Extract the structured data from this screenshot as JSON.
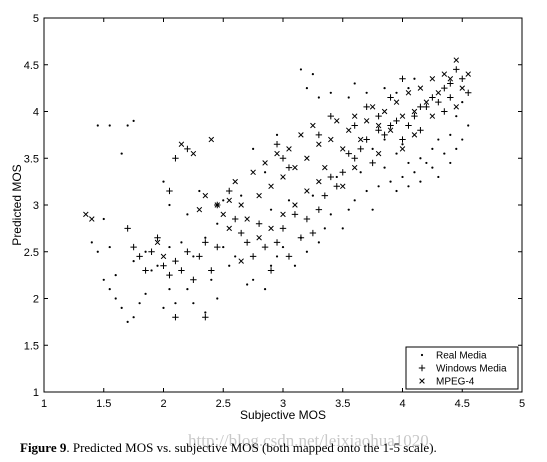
{
  "chart_data": {
    "type": "scatter",
    "title": "",
    "xlabel": "Subjective MOS",
    "ylabel": "Predicted MOS",
    "xlim": [
      1,
      5
    ],
    "ylim": [
      1,
      5
    ],
    "xticks": [
      "1",
      "1.5",
      "2",
      "2.5",
      "3",
      "3.5",
      "4",
      "4.5",
      "5"
    ],
    "yticks": [
      "1",
      "1.5",
      "2",
      "2.5",
      "3",
      "3.5",
      "4",
      "4.5",
      "5"
    ],
    "grid": false,
    "legend_position": "bottom-right",
    "series": [
      {
        "name": "Real Media",
        "marker": "dot",
        "color": "#000000",
        "points": [
          [
            1.45,
            3.85
          ],
          [
            1.55,
            3.85
          ],
          [
            1.7,
            3.85
          ],
          [
            1.75,
            3.9
          ],
          [
            1.65,
            3.55
          ],
          [
            1.4,
            2.6
          ],
          [
            1.45,
            2.5
          ],
          [
            1.5,
            2.2
          ],
          [
            1.55,
            2.1
          ],
          [
            1.6,
            2.0
          ],
          [
            1.65,
            1.9
          ],
          [
            1.7,
            1.75
          ],
          [
            1.75,
            1.8
          ],
          [
            1.8,
            1.95
          ],
          [
            1.85,
            2.05
          ],
          [
            1.9,
            2.3
          ],
          [
            2.0,
            1.9
          ],
          [
            2.05,
            2.1
          ],
          [
            2.1,
            1.95
          ],
          [
            2.2,
            2.1
          ],
          [
            2.25,
            1.95
          ],
          [
            2.35,
            1.85
          ],
          [
            2.4,
            2.2
          ],
          [
            2.45,
            2.0
          ],
          [
            2.0,
            3.25
          ],
          [
            2.05,
            3.0
          ],
          [
            2.2,
            2.9
          ],
          [
            2.3,
            3.15
          ],
          [
            2.5,
            2.55
          ],
          [
            2.55,
            2.35
          ],
          [
            2.6,
            2.45
          ],
          [
            2.7,
            2.15
          ],
          [
            2.75,
            2.2
          ],
          [
            2.85,
            2.1
          ],
          [
            2.9,
            2.35
          ],
          [
            2.95,
            2.45
          ],
          [
            3.0,
            2.55
          ],
          [
            3.1,
            2.35
          ],
          [
            3.15,
            2.65
          ],
          [
            3.2,
            2.5
          ],
          [
            3.3,
            2.6
          ],
          [
            3.35,
            2.75
          ],
          [
            3.4,
            2.9
          ],
          [
            3.5,
            2.75
          ],
          [
            3.55,
            2.95
          ],
          [
            3.6,
            3.05
          ],
          [
            3.7,
            3.15
          ],
          [
            3.75,
            2.95
          ],
          [
            3.8,
            3.2
          ],
          [
            3.9,
            3.25
          ],
          [
            3.95,
            3.15
          ],
          [
            4.0,
            3.3
          ],
          [
            4.05,
            3.2
          ],
          [
            4.1,
            3.35
          ],
          [
            4.15,
            3.25
          ],
          [
            4.2,
            3.45
          ],
          [
            4.25,
            3.4
          ],
          [
            4.3,
            3.3
          ],
          [
            4.35,
            3.55
          ],
          [
            4.4,
            3.45
          ],
          [
            4.45,
            3.6
          ],
          [
            4.5,
            3.7
          ],
          [
            4.55,
            3.85
          ],
          [
            4.5,
            4.1
          ],
          [
            4.45,
            3.95
          ],
          [
            4.4,
            3.75
          ],
          [
            4.3,
            3.7
          ],
          [
            4.25,
            3.6
          ],
          [
            4.15,
            3.5
          ],
          [
            4.05,
            3.45
          ],
          [
            3.95,
            3.55
          ],
          [
            3.85,
            3.4
          ],
          [
            3.2,
            4.25
          ],
          [
            3.3,
            4.15
          ],
          [
            3.4,
            4.2
          ],
          [
            3.55,
            4.15
          ],
          [
            3.6,
            4.3
          ],
          [
            3.7,
            4.2
          ],
          [
            3.85,
            4.25
          ],
          [
            3.95,
            4.2
          ],
          [
            4.05,
            4.25
          ],
          [
            4.1,
            4.35
          ],
          [
            3.25,
            4.4
          ],
          [
            3.15,
            4.45
          ],
          [
            2.95,
            3.75
          ],
          [
            2.85,
            3.35
          ],
          [
            2.75,
            3.6
          ],
          [
            2.65,
            3.1
          ],
          [
            2.5,
            3.05
          ],
          [
            2.45,
            2.8
          ],
          [
            2.35,
            2.65
          ],
          [
            2.25,
            2.45
          ],
          [
            2.15,
            2.6
          ],
          [
            2.05,
            2.55
          ],
          [
            1.95,
            2.35
          ],
          [
            1.85,
            2.5
          ],
          [
            1.75,
            2.4
          ],
          [
            1.6,
            2.25
          ],
          [
            1.5,
            2.85
          ],
          [
            1.55,
            2.55
          ],
          [
            2.9,
            2.95
          ],
          [
            3.05,
            3.05
          ],
          [
            3.25,
            3.1
          ],
          [
            3.45,
            3.3
          ],
          [
            3.65,
            3.35
          ],
          [
            3.75,
            3.6
          ],
          [
            3.85,
            3.7
          ],
          [
            4.0,
            3.65
          ]
        ]
      },
      {
        "name": "Windows Media",
        "marker": "plus",
        "color": "#000000",
        "points": [
          [
            1.7,
            2.75
          ],
          [
            1.75,
            2.55
          ],
          [
            1.8,
            2.45
          ],
          [
            1.85,
            2.3
          ],
          [
            1.9,
            2.5
          ],
          [
            1.95,
            2.65
          ],
          [
            2.0,
            2.35
          ],
          [
            2.05,
            2.25
          ],
          [
            2.1,
            2.4
          ],
          [
            2.15,
            2.3
          ],
          [
            2.2,
            2.5
          ],
          [
            2.25,
            2.2
          ],
          [
            2.3,
            2.45
          ],
          [
            2.35,
            2.6
          ],
          [
            2.4,
            2.3
          ],
          [
            2.45,
            2.55
          ],
          [
            2.1,
            1.8
          ],
          [
            2.35,
            1.8
          ],
          [
            2.6,
            2.85
          ],
          [
            2.65,
            2.7
          ],
          [
            2.7,
            2.6
          ],
          [
            2.75,
            2.45
          ],
          [
            2.8,
            2.8
          ],
          [
            2.85,
            2.55
          ],
          [
            2.9,
            2.3
          ],
          [
            2.95,
            2.6
          ],
          [
            3.0,
            2.75
          ],
          [
            3.05,
            2.45
          ],
          [
            3.1,
            2.9
          ],
          [
            3.15,
            2.65
          ],
          [
            3.2,
            2.85
          ],
          [
            3.25,
            2.7
          ],
          [
            3.3,
            2.95
          ],
          [
            3.35,
            3.1
          ],
          [
            3.4,
            3.3
          ],
          [
            3.45,
            3.2
          ],
          [
            3.5,
            3.35
          ],
          [
            3.55,
            3.55
          ],
          [
            3.6,
            3.5
          ],
          [
            3.65,
            3.6
          ],
          [
            3.7,
            3.7
          ],
          [
            3.75,
            3.45
          ],
          [
            3.8,
            3.8
          ],
          [
            3.85,
            3.75
          ],
          [
            3.9,
            3.85
          ],
          [
            3.95,
            3.9
          ],
          [
            4.0,
            3.7
          ],
          [
            4.05,
            3.85
          ],
          [
            4.1,
            3.95
          ],
          [
            4.15,
            3.8
          ],
          [
            4.2,
            4.05
          ],
          [
            4.25,
            4.15
          ],
          [
            4.3,
            4.1
          ],
          [
            4.35,
            4.25
          ],
          [
            4.4,
            4.3
          ],
          [
            4.45,
            4.45
          ],
          [
            4.5,
            4.35
          ],
          [
            4.55,
            4.2
          ],
          [
            4.0,
            4.35
          ],
          [
            3.0,
            3.5
          ],
          [
            2.95,
            3.65
          ],
          [
            3.05,
            3.4
          ],
          [
            2.55,
            3.15
          ],
          [
            2.45,
            3.0
          ],
          [
            2.2,
            3.6
          ],
          [
            2.1,
            3.5
          ],
          [
            2.05,
            3.15
          ],
          [
            3.3,
            3.75
          ],
          [
            3.4,
            3.95
          ],
          [
            3.6,
            3.85
          ],
          [
            3.7,
            4.05
          ],
          [
            3.8,
            3.95
          ],
          [
            3.9,
            4.15
          ],
          [
            4.15,
            4.05
          ],
          [
            4.35,
            4.0
          ],
          [
            4.4,
            4.15
          ]
        ]
      },
      {
        "name": "MPEG-4",
        "marker": "cross",
        "color": "#000000",
        "points": [
          [
            1.35,
            2.9
          ],
          [
            1.4,
            2.85
          ],
          [
            1.95,
            2.6
          ],
          [
            2.0,
            2.45
          ],
          [
            2.3,
            2.95
          ],
          [
            2.35,
            3.1
          ],
          [
            2.45,
            3.0
          ],
          [
            2.5,
            2.9
          ],
          [
            2.55,
            3.05
          ],
          [
            2.6,
            3.25
          ],
          [
            2.65,
            3.0
          ],
          [
            2.7,
            2.85
          ],
          [
            2.75,
            3.35
          ],
          [
            2.8,
            3.1
          ],
          [
            2.85,
            3.45
          ],
          [
            2.9,
            3.2
          ],
          [
            2.95,
            3.55
          ],
          [
            3.0,
            3.3
          ],
          [
            3.05,
            3.6
          ],
          [
            3.1,
            3.4
          ],
          [
            3.15,
            3.75
          ],
          [
            3.2,
            3.5
          ],
          [
            3.25,
            3.85
          ],
          [
            3.3,
            3.65
          ],
          [
            3.35,
            3.4
          ],
          [
            3.4,
            3.7
          ],
          [
            3.45,
            3.9
          ],
          [
            3.5,
            3.6
          ],
          [
            3.55,
            3.8
          ],
          [
            3.6,
            3.95
          ],
          [
            3.65,
            3.7
          ],
          [
            3.7,
            3.9
          ],
          [
            3.75,
            4.05
          ],
          [
            3.8,
            3.85
          ],
          [
            3.85,
            4.0
          ],
          [
            3.9,
            3.8
          ],
          [
            3.95,
            4.1
          ],
          [
            4.0,
            3.95
          ],
          [
            4.05,
            4.2
          ],
          [
            4.1,
            4.0
          ],
          [
            4.15,
            4.25
          ],
          [
            4.2,
            4.1
          ],
          [
            4.25,
            4.35
          ],
          [
            4.3,
            4.2
          ],
          [
            4.35,
            4.4
          ],
          [
            4.4,
            4.35
          ],
          [
            4.45,
            4.55
          ],
          [
            4.5,
            4.25
          ],
          [
            4.55,
            4.4
          ],
          [
            2.15,
            3.65
          ],
          [
            2.25,
            3.55
          ],
          [
            2.4,
            3.7
          ],
          [
            3.1,
            3.0
          ],
          [
            3.2,
            3.15
          ],
          [
            3.3,
            3.25
          ],
          [
            3.5,
            3.2
          ],
          [
            3.6,
            3.4
          ],
          [
            3.8,
            3.55
          ],
          [
            4.0,
            3.6
          ],
          [
            4.1,
            3.75
          ],
          [
            4.25,
            3.95
          ],
          [
            4.45,
            4.05
          ],
          [
            2.55,
            2.75
          ],
          [
            2.65,
            2.4
          ],
          [
            2.8,
            2.65
          ],
          [
            2.9,
            2.75
          ],
          [
            3.0,
            2.9
          ]
        ]
      }
    ]
  },
  "caption": {
    "label": "Figure 9",
    "text": ". Predicted MOS vs. subjective MOS (both mapped onto the 1-5 scale)."
  },
  "watermark": "http://blog.csdn.net/leixiaohua1020"
}
